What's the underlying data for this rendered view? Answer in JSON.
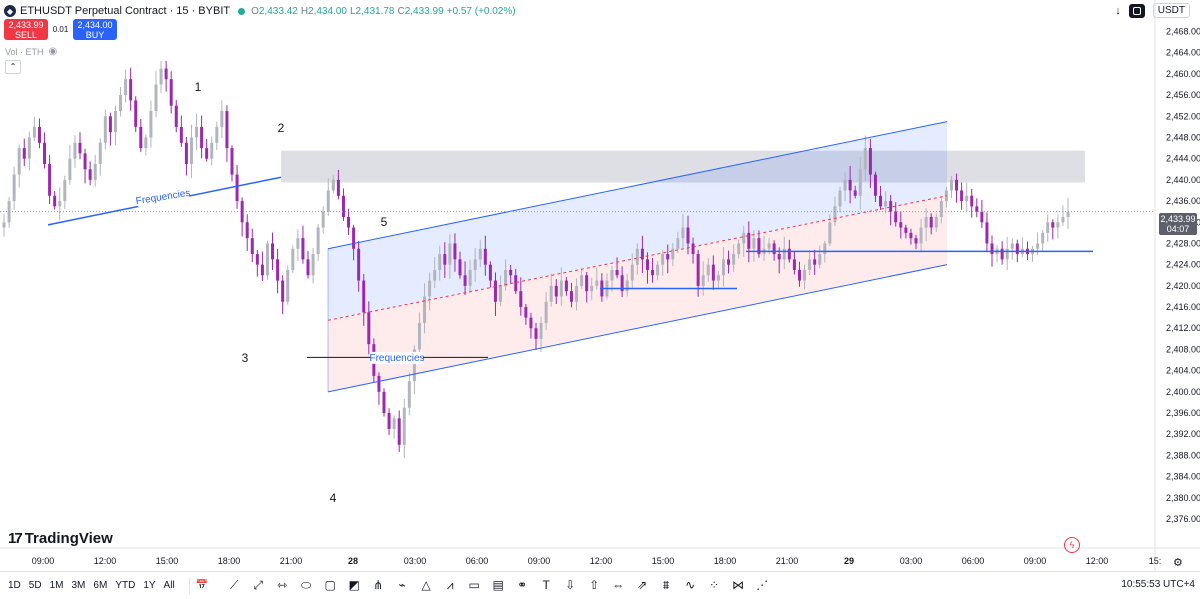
{
  "header": {
    "symbol": "ETHUSDT Perpetual Contract · 15 · BYBIT",
    "open": "2,433.42",
    "high": "2,434.00",
    "low": "2,431.78",
    "close": "2,433.99",
    "change": "+0.57 (+0.02%)"
  },
  "trade": {
    "sell_price": "2,433.99",
    "sell_label": "SELL",
    "spread": "0.01",
    "buy_price": "2,434.00",
    "buy_label": "BUY"
  },
  "volume_label": "Vol · ETH",
  "currency": "USDT",
  "current_price": {
    "value": "2,433.99",
    "countdown": "04:07"
  },
  "logo": "TradingView",
  "timeframes": [
    "1D",
    "5D",
    "1M",
    "3M",
    "6M",
    "YTD",
    "1Y",
    "All"
  ],
  "clock": "10:55:53 UTC+4",
  "colors": {
    "bull": "#b2b5be",
    "bear": "#9c27b0",
    "trend": "#2962ff"
  },
  "chart_data": {
    "type": "candlestick",
    "symbol": "ETHUSDT Perpetual Contract",
    "interval": "15",
    "ylim": [
      2374,
      2470
    ],
    "y_ticks": [
      "2,468.00",
      "2,464.00",
      "2,460.00",
      "2,456.00",
      "2,452.00",
      "2,448.00",
      "2,444.00",
      "2,440.00",
      "2,436.00",
      "2,432.00",
      "2,428.00",
      "2,424.00",
      "2,420.00",
      "2,416.00",
      "2,412.00",
      "2,408.00",
      "2,404.00",
      "2,400.00",
      "2,396.00",
      "2,392.00",
      "2,388.00",
      "2,384.00",
      "2,380.00",
      "2,376.00"
    ],
    "x_ticks": [
      "09:00",
      "12:00",
      "15:00",
      "18:00",
      "21:00",
      "28",
      "03:00",
      "06:00",
      "09:00",
      "12:00",
      "15:00",
      "18:00",
      "21:00",
      "29",
      "03:00",
      "06:00",
      "09:00",
      "12:00",
      "15:"
    ],
    "closes": [
      2432,
      2436,
      2441,
      2446,
      2444,
      2448,
      2450,
      2447,
      2443,
      2437,
      2435,
      2436,
      2440,
      2444,
      2447,
      2445,
      2442,
      2440,
      2443,
      2447,
      2452,
      2449,
      2453,
      2456,
      2459,
      2455,
      2450,
      2446,
      2448,
      2453,
      2458,
      2461,
      2459,
      2454,
      2450,
      2447,
      2443,
      2448,
      2450,
      2446,
      2444,
      2447,
      2450,
      2453,
      2446,
      2441,
      2436,
      2432,
      2429,
      2426,
      2424,
      2422,
      2428,
      2425,
      2421,
      2417,
      2423,
      2427,
      2429,
      2425,
      2422,
      2426,
      2431,
      2434,
      2438,
      2440,
      2437,
      2433,
      2431,
      2427,
      2421,
      2415,
      2409,
      2403,
      2400,
      2396,
      2393,
      2395,
      2390,
      2397,
      2402,
      2408,
      2413,
      2418,
      2421,
      2423,
      2426,
      2424,
      2428,
      2425,
      2422,
      2420,
      2423,
      2425,
      2427,
      2424,
      2421,
      2417,
      2420,
      2423,
      2422,
      2419,
      2416,
      2414,
      2412,
      2410,
      2413,
      2417,
      2420,
      2418,
      2421,
      2419,
      2417,
      2420,
      2422,
      2419,
      2420,
      2421,
      2418,
      2421,
      2423,
      2422,
      2419,
      2421,
      2424,
      2427,
      2425,
      2423,
      2422,
      2424,
      2426,
      2425,
      2427,
      2429,
      2431,
      2428,
      2426,
      2420,
      2422,
      2424,
      2421,
      2422,
      2425,
      2424,
      2426,
      2428,
      2430,
      2427,
      2429,
      2426,
      2427,
      2428,
      2426,
      2425,
      2427,
      2425,
      2423,
      2421,
      2423,
      2425,
      2424,
      2426,
      2428,
      2432,
      2435,
      2438,
      2440,
      2438,
      2437,
      2442,
      2446,
      2441,
      2437,
      2435,
      2436,
      2434,
      2432,
      2431,
      2430,
      2429,
      2428,
      2431,
      2433,
      2431,
      2433,
      2436,
      2438,
      2440,
      2438,
      2436,
      2437,
      2435,
      2434,
      2432,
      2428,
      2426,
      2427,
      2425,
      2427,
      2428,
      2426,
      2427,
      2426,
      2427,
      2428,
      2430,
      2432,
      2431,
      2432,
      2433,
      2434
    ],
    "annotations": [
      {
        "text": "1",
        "price": 2458
      },
      {
        "text": "2",
        "price": 2452
      },
      {
        "text": "3",
        "price": 2410
      },
      {
        "text": "4",
        "price": 2383
      },
      {
        "text": "5",
        "price": 2431
      },
      {
        "text": "Frequencies",
        "price": 2438
      },
      {
        "text": "Frequencies",
        "price": 2406
      }
    ],
    "supply_zone": [
      2439.5,
      2445.5
    ],
    "regression_channel": {
      "upper": [
        2427,
        2451
      ],
      "middle": [
        2413.5,
        2437
      ],
      "lower": [
        2400,
        2424
      ]
    },
    "horizontal_lines": [
      2406.5,
      2419.5,
      2426.5,
      2426
    ]
  }
}
